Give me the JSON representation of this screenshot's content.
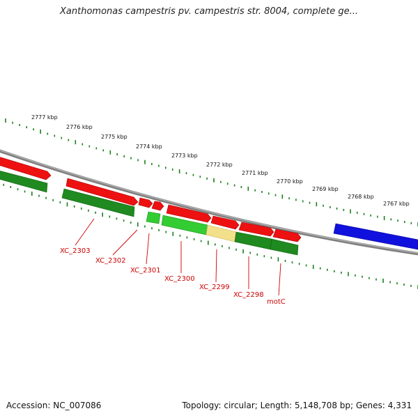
{
  "title": "Xanthomonas campestris pv. campestris str. 8004, complete ge...",
  "accession": "Accession: NC_007086",
  "summary": "Topology: circular; Length: 5,148,708 bp; Genes: 4,331",
  "colors": {
    "backbone": "#808080",
    "forward_strand": "#ee1111",
    "reverse_strand": "#1f8a1f",
    "reverse_strand_light": "#33cc33",
    "highlight": "#f3e08a",
    "other": "#1111dd",
    "ruler": "#1a7f1a",
    "label": "#cc0000"
  },
  "ruler": {
    "unit": "kbp",
    "labels": [
      "2777 kbp",
      "2776 kbp",
      "2775 kbp",
      "2774 kbp",
      "2773 kbp",
      "2772 kbp",
      "2771 kbp",
      "2770 kbp",
      "2769 kbp",
      "2768 kbp",
      "2767 kbp"
    ]
  },
  "gene_labels": [
    "XC_2303",
    "XC_2302",
    "XC_2301",
    "XC_2300",
    "XC_2299",
    "XC_2298",
    "motC"
  ]
}
